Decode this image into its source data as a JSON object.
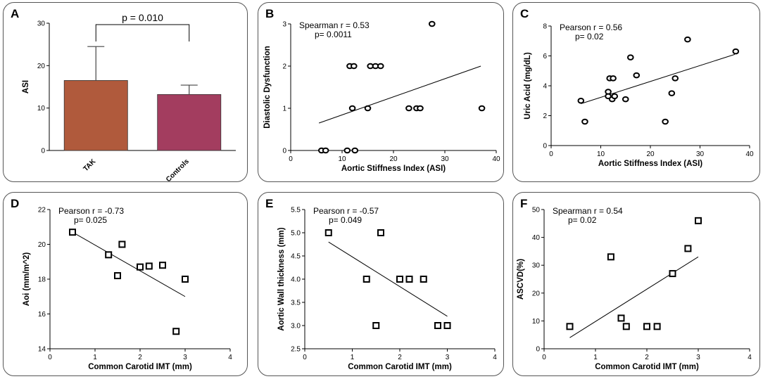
{
  "chart_data": [
    {
      "panel": "A",
      "type": "bar",
      "categories": [
        "TAK",
        "Controls"
      ],
      "values": [
        16.5,
        13.2
      ],
      "errors": [
        8.0,
        2.2
      ],
      "colors": [
        "#b05a3c",
        "#a33d5f"
      ],
      "ylabel": "ASI",
      "xlabel": "",
      "ylim": [
        0,
        30
      ],
      "yticks": [
        0,
        10,
        20,
        30
      ],
      "annotation": "p = 0.010"
    },
    {
      "panel": "B",
      "type": "scatter",
      "xlabel": "Aortic Stiffness Index (ASI)",
      "ylabel": "Diastolic Dysfunction",
      "xlim": [
        0,
        40
      ],
      "ylim": [
        0,
        3
      ],
      "xticks": [
        0,
        10,
        20,
        30,
        40
      ],
      "yticks": [
        0,
        1,
        2,
        3
      ],
      "stat_line1": "Spearman r = 0.53",
      "stat_line2": "p= 0.0011",
      "marker": "circle",
      "x": [
        6,
        6.8,
        11,
        11.5,
        12,
        12.5,
        12.3,
        15,
        15.5,
        16.5,
        17.5,
        23,
        24.5,
        25.2,
        27.5,
        37.2
      ],
      "y": [
        0,
        0,
        0,
        2,
        1,
        0,
        2,
        1,
        2,
        2,
        2,
        1,
        1,
        1,
        3,
        1
      ],
      "fit": {
        "x": [
          5.5,
          37
        ],
        "y": [
          0.65,
          2.0
        ]
      }
    },
    {
      "panel": "C",
      "type": "scatter",
      "xlabel": "Aortic Stiffness Index (ASI)",
      "ylabel": "Uric Acid (mg/dL)",
      "xlim": [
        0,
        40
      ],
      "ylim": [
        0,
        8
      ],
      "xticks": [
        0,
        10,
        20,
        30,
        40
      ],
      "yticks": [
        0,
        2,
        4,
        6,
        8
      ],
      "stat_line1": "Pearson r = 0.56",
      "stat_line2": "p= 0.02",
      "marker": "circle",
      "x": [
        6,
        6.8,
        11.5,
        11.5,
        11.8,
        12.3,
        12.5,
        12.8,
        15,
        16,
        17.2,
        23,
        24.3,
        25,
        27.5,
        37.2
      ],
      "y": [
        3.0,
        1.6,
        3.6,
        3.3,
        4.5,
        3.1,
        4.5,
        3.3,
        3.1,
        5.9,
        4.7,
        1.6,
        3.5,
        4.5,
        7.1,
        6.3
      ],
      "fit": {
        "x": [
          6,
          37
        ],
        "y": [
          2.8,
          6.1
        ]
      }
    },
    {
      "panel": "D",
      "type": "scatter",
      "xlabel": "Common Carotid IMT (mm)",
      "ylabel": "Aoi (mm/m^2)",
      "xlim": [
        0,
        4
      ],
      "ylim": [
        14,
        22
      ],
      "xticks": [
        0,
        1,
        2,
        3,
        4
      ],
      "yticks": [
        14,
        16,
        18,
        20,
        22
      ],
      "stat_line1": "Pearson r = -0.73",
      "stat_line2": "p= 0.025",
      "marker": "square",
      "x": [
        0.5,
        1.3,
        1.5,
        1.6,
        2.0,
        2.2,
        2.5,
        2.8,
        3.0
      ],
      "y": [
        20.7,
        19.4,
        18.2,
        20.0,
        18.7,
        18.75,
        18.8,
        15.0,
        18.0
      ],
      "fit": {
        "x": [
          0.5,
          3.0
        ],
        "y": [
          20.7,
          17.0
        ]
      }
    },
    {
      "panel": "E",
      "type": "scatter",
      "xlabel": "Common Carotid IMT (mm)",
      "ylabel": "Aortic Wall thickness (mm)",
      "xlim": [
        0,
        4
      ],
      "ylim": [
        2.5,
        5.5
      ],
      "xticks": [
        0,
        1,
        2,
        3,
        4
      ],
      "yticks": [
        2.5,
        3.0,
        3.5,
        4.0,
        4.5,
        5.0,
        5.5
      ],
      "yticklabels": [
        "2.5",
        "3.0",
        "3.5",
        "4.0",
        "4.5",
        "5.0",
        "5.5"
      ],
      "stat_line1": "Pearson r = -0.57",
      "stat_line2": "p= 0.049",
      "marker": "square",
      "x": [
        0.5,
        1.3,
        1.5,
        1.6,
        2.0,
        2.2,
        2.5,
        2.8,
        3.0
      ],
      "y": [
        5.0,
        4.0,
        3.0,
        5.0,
        4.0,
        4.0,
        4.0,
        3.0,
        3.0
      ],
      "fit": {
        "x": [
          0.5,
          3.0
        ],
        "y": [
          4.8,
          3.2
        ]
      }
    },
    {
      "panel": "F",
      "type": "scatter",
      "xlabel": "Common Carotid IMT (mm)",
      "ylabel": "ASCVD(%)",
      "xlim": [
        0,
        4
      ],
      "ylim": [
        0,
        50
      ],
      "xticks": [
        0,
        1,
        2,
        3,
        4
      ],
      "yticks": [
        0,
        10,
        20,
        30,
        40,
        50
      ],
      "stat_line1": "Spearman r = 0.54",
      "stat_line2": "p= 0.02",
      "marker": "square",
      "x": [
        0.5,
        1.3,
        1.5,
        1.6,
        2.0,
        2.2,
        2.5,
        2.8,
        3.0
      ],
      "y": [
        8,
        33,
        11,
        8,
        8,
        8,
        27,
        36,
        46
      ],
      "fit": {
        "x": [
          0.5,
          3.0
        ],
        "y": [
          4,
          33
        ]
      }
    }
  ]
}
